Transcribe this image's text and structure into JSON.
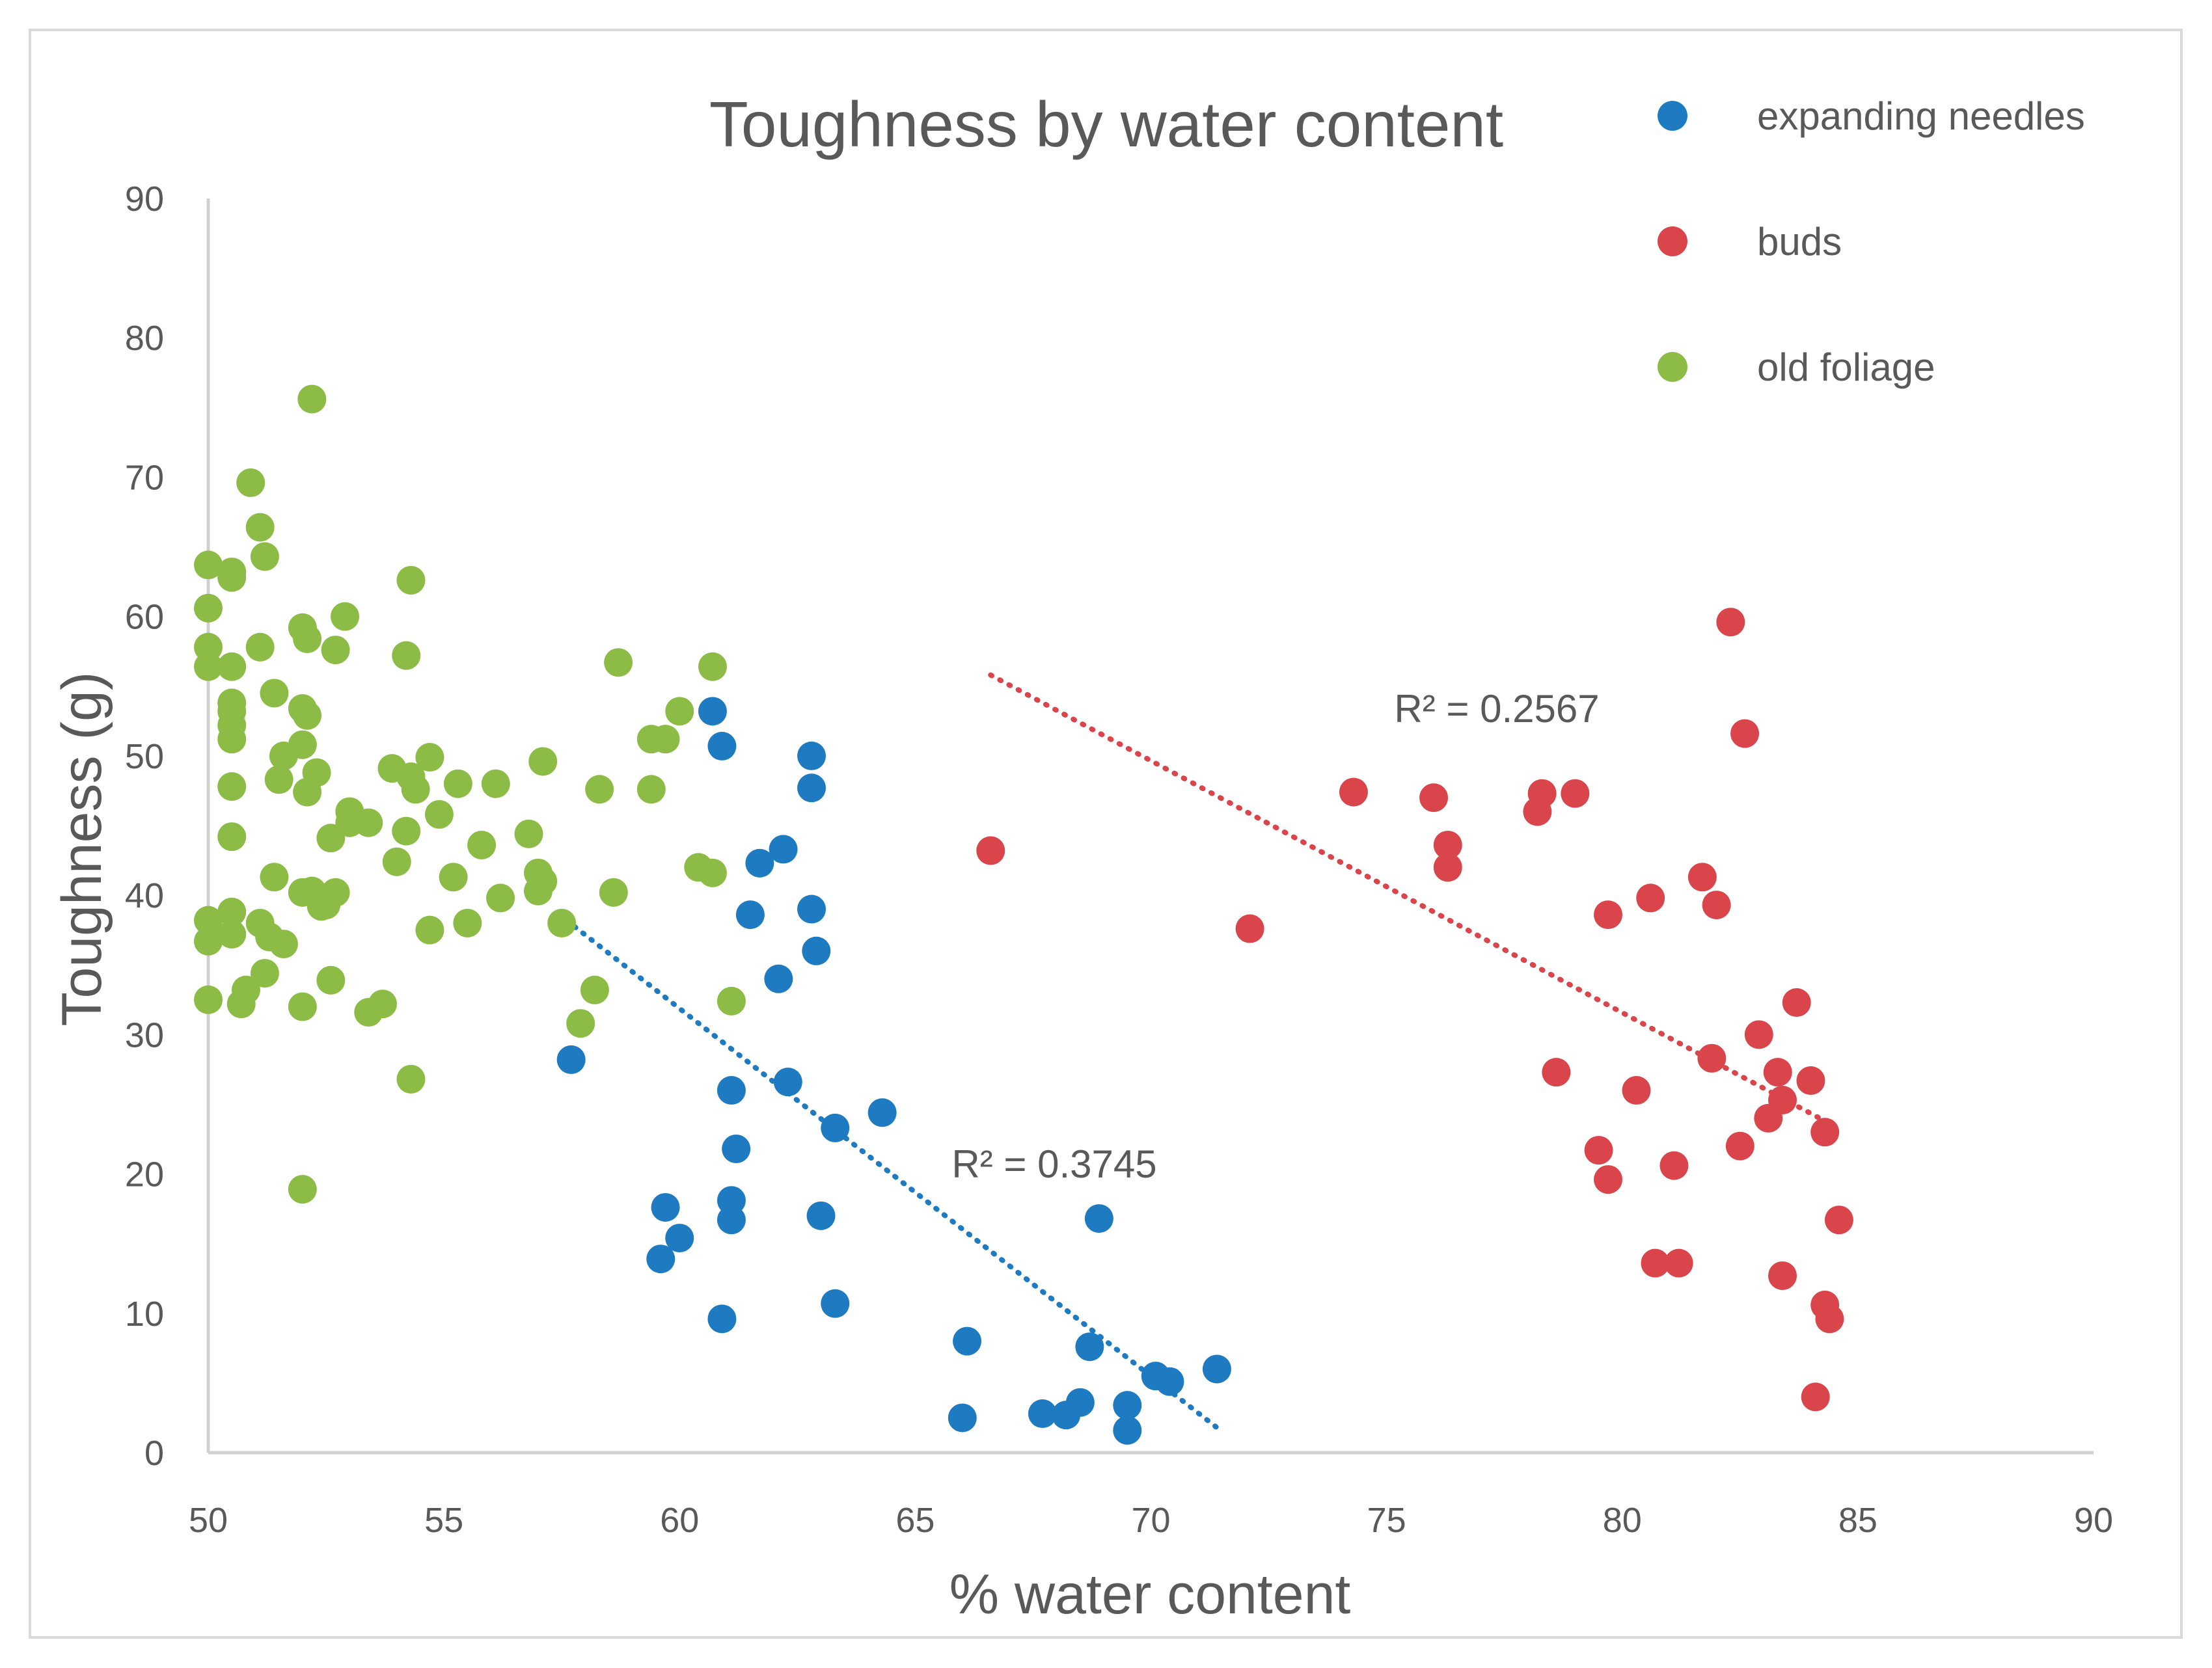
{
  "chart_data": {
    "type": "scatter",
    "title": "Toughness by water content",
    "xlabel": "% water content",
    "ylabel": "Toughness (g)",
    "xlim": [
      50,
      90
    ],
    "ylim": [
      0,
      90
    ],
    "xticks": [
      50,
      55,
      60,
      65,
      70,
      75,
      80,
      85,
      90
    ],
    "yticks": [
      0,
      10,
      20,
      30,
      40,
      50,
      60,
      70,
      80,
      90
    ],
    "legend_position": "top-right",
    "series": [
      {
        "name": "expanding needles",
        "color": "#1f7bc1",
        "points": [
          [
            57.7,
            28.2
          ],
          [
            59.6,
            13.9
          ],
          [
            59.7,
            17.6
          ],
          [
            60.0,
            15.4
          ],
          [
            60.7,
            53.2
          ],
          [
            60.9,
            9.6
          ],
          [
            60.9,
            50.7
          ],
          [
            61.1,
            26.0
          ],
          [
            61.1,
            18.1
          ],
          [
            61.1,
            16.7
          ],
          [
            61.2,
            21.8
          ],
          [
            61.5,
            38.6
          ],
          [
            61.7,
            42.3
          ],
          [
            62.1,
            34.0
          ],
          [
            62.2,
            43.3
          ],
          [
            62.3,
            26.6
          ],
          [
            62.8,
            50.0
          ],
          [
            62.8,
            47.7
          ],
          [
            62.8,
            39.0
          ],
          [
            62.9,
            36.0
          ],
          [
            63.0,
            17.0
          ],
          [
            63.3,
            23.3
          ],
          [
            63.3,
            10.7
          ],
          [
            64.3,
            24.4
          ],
          [
            66.0,
            2.5
          ],
          [
            66.1,
            8.0
          ],
          [
            67.7,
            2.8
          ],
          [
            68.2,
            2.7
          ],
          [
            68.5,
            3.6
          ],
          [
            68.7,
            7.6
          ],
          [
            68.9,
            16.8
          ],
          [
            69.5,
            3.4
          ],
          [
            69.5,
            1.6
          ],
          [
            70.1,
            5.5
          ],
          [
            70.4,
            5.1
          ],
          [
            71.4,
            6.0
          ]
        ],
        "trendline": {
          "x": [
            57.6,
            71.4
          ],
          "y": [
            38.2,
            1.8
          ]
        },
        "r2_label": "R² = 0.3745"
      },
      {
        "name": "buds",
        "color": "#d9454a",
        "points": [
          [
            66.6,
            43.2
          ],
          [
            72.1,
            37.6
          ],
          [
            74.3,
            47.4
          ],
          [
            76.0,
            47.0
          ],
          [
            76.3,
            43.6
          ],
          [
            76.3,
            42.0
          ],
          [
            78.2,
            46.0
          ],
          [
            78.3,
            47.3
          ],
          [
            78.6,
            27.3
          ],
          [
            79.0,
            47.3
          ],
          [
            79.5,
            21.7
          ],
          [
            79.7,
            38.6
          ],
          [
            79.7,
            19.6
          ],
          [
            80.3,
            26.0
          ],
          [
            80.6,
            39.8
          ],
          [
            80.7,
            13.6
          ],
          [
            81.1,
            20.6
          ],
          [
            81.2,
            13.6
          ],
          [
            81.7,
            41.3
          ],
          [
            81.9,
            28.3
          ],
          [
            82.0,
            39.3
          ],
          [
            82.3,
            59.6
          ],
          [
            82.5,
            22.0
          ],
          [
            82.6,
            51.6
          ],
          [
            82.9,
            30.0
          ],
          [
            83.1,
            24.0
          ],
          [
            83.3,
            27.3
          ],
          [
            83.4,
            25.3
          ],
          [
            83.4,
            12.7
          ],
          [
            83.7,
            32.3
          ],
          [
            84.0,
            26.7
          ],
          [
            84.1,
            4.0
          ],
          [
            84.3,
            10.6
          ],
          [
            84.3,
            23.0
          ],
          [
            84.4,
            9.6
          ],
          [
            84.6,
            16.7
          ]
        ],
        "trendline": {
          "x": [
            66.6,
            84.3
          ],
          "y": [
            55.8,
            23.8
          ]
        },
        "r2_label": "R² = 0.2567"
      },
      {
        "name": "old foliage",
        "color": "#8cbc46",
        "points": [
          [
            50.0,
            63.7
          ],
          [
            50.0,
            60.6
          ],
          [
            50.0,
            57.8
          ],
          [
            50.0,
            56.4
          ],
          [
            50.0,
            38.2
          ],
          [
            50.0,
            36.7
          ],
          [
            50.0,
            32.5
          ],
          [
            50.5,
            63.2
          ],
          [
            50.5,
            62.8
          ],
          [
            50.5,
            56.4
          ],
          [
            50.5,
            53.8
          ],
          [
            50.5,
            53.2
          ],
          [
            50.5,
            52.2
          ],
          [
            50.5,
            51.2
          ],
          [
            50.5,
            47.8
          ],
          [
            50.5,
            44.2
          ],
          [
            50.5,
            38.8
          ],
          [
            50.5,
            37.2
          ],
          [
            50.7,
            32.2
          ],
          [
            50.8,
            33.2
          ],
          [
            50.9,
            69.6
          ],
          [
            51.1,
            66.4
          ],
          [
            51.1,
            57.8
          ],
          [
            51.1,
            38.0
          ],
          [
            51.2,
            64.3
          ],
          [
            51.2,
            34.4
          ],
          [
            51.3,
            37.0
          ],
          [
            51.4,
            54.5
          ],
          [
            51.4,
            41.3
          ],
          [
            51.5,
            48.3
          ],
          [
            51.6,
            36.5
          ],
          [
            51.6,
            50.0
          ],
          [
            52.0,
            59.2
          ],
          [
            52.0,
            53.4
          ],
          [
            52.0,
            50.8
          ],
          [
            52.0,
            40.2
          ],
          [
            52.0,
            32.0
          ],
          [
            52.0,
            18.9
          ],
          [
            52.1,
            58.4
          ],
          [
            52.1,
            52.9
          ],
          [
            52.1,
            47.4
          ],
          [
            52.2,
            40.3
          ],
          [
            52.2,
            75.6
          ],
          [
            52.3,
            48.8
          ],
          [
            52.4,
            39.2
          ],
          [
            52.5,
            39.3
          ],
          [
            52.6,
            33.9
          ],
          [
            52.6,
            44.1
          ],
          [
            52.7,
            57.6
          ],
          [
            52.7,
            40.2
          ],
          [
            52.9,
            60.0
          ],
          [
            53.0,
            45.2
          ],
          [
            53.0,
            46.0
          ],
          [
            53.4,
            45.2
          ],
          [
            53.4,
            31.6
          ],
          [
            53.7,
            32.2
          ],
          [
            53.9,
            49.1
          ],
          [
            54.0,
            42.4
          ],
          [
            54.2,
            57.2
          ],
          [
            54.2,
            44.6
          ],
          [
            54.3,
            62.6
          ],
          [
            54.3,
            48.5
          ],
          [
            54.3,
            26.8
          ],
          [
            54.4,
            47.6
          ],
          [
            54.7,
            37.5
          ],
          [
            54.7,
            49.9
          ],
          [
            54.9,
            45.8
          ],
          [
            55.2,
            41.3
          ],
          [
            55.3,
            48.0
          ],
          [
            55.5,
            38.0
          ],
          [
            55.8,
            43.6
          ],
          [
            56.1,
            48.0
          ],
          [
            56.2,
            39.8
          ],
          [
            56.8,
            44.4
          ],
          [
            57.0,
            41.6
          ],
          [
            57.0,
            40.3
          ],
          [
            57.1,
            49.6
          ],
          [
            57.1,
            41.0
          ],
          [
            57.5,
            38.0
          ],
          [
            57.9,
            30.8
          ],
          [
            58.2,
            33.2
          ],
          [
            58.3,
            47.6
          ],
          [
            58.6,
            40.2
          ],
          [
            58.7,
            56.7
          ],
          [
            59.4,
            51.2
          ],
          [
            59.4,
            47.6
          ],
          [
            59.7,
            51.2
          ],
          [
            60.0,
            53.2
          ],
          [
            60.4,
            42.0
          ],
          [
            60.7,
            56.4
          ],
          [
            60.7,
            41.6
          ],
          [
            61.1,
            32.4
          ]
        ]
      }
    ]
  }
}
